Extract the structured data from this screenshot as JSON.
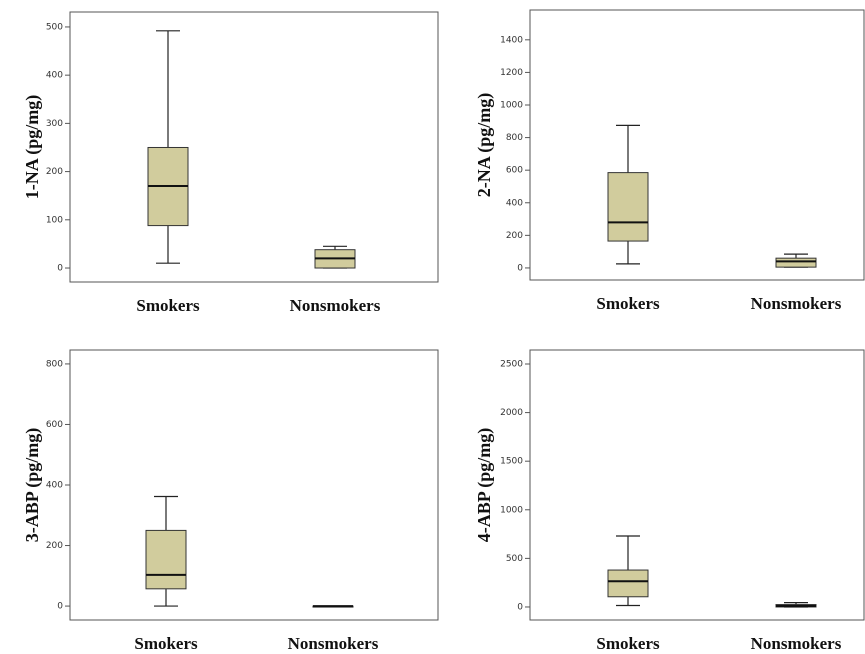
{
  "chart_data": [
    {
      "type": "box",
      "ylabel": "1-NA (pg/mg)",
      "categories": [
        "Smokers",
        "Nonsmokers"
      ],
      "color": "#d1cc9d",
      "boxes": [
        {
          "min": 10,
          "q1": 88,
          "median": 170,
          "q3": 250,
          "max": 492
        },
        {
          "min": 0,
          "q1": 0,
          "median": 20,
          "q3": 38,
          "max": 45
        }
      ],
      "ylim": [
        -29,
        531
      ],
      "yticks": [
        0,
        100,
        200,
        300,
        400,
        500
      ]
    },
    {
      "type": "box",
      "ylabel": "2-NA (pg/mg)",
      "categories": [
        "Smokers",
        "Nonsmokers"
      ],
      "color": "#d1cc9d",
      "boxes": [
        {
          "min": 25,
          "q1": 165,
          "median": 280,
          "q3": 585,
          "max": 875
        },
        {
          "min": 5,
          "q1": 5,
          "median": 40,
          "q3": 60,
          "max": 85
        }
      ],
      "ylim": [
        -74,
        1583
      ],
      "yticks": [
        0,
        200,
        400,
        600,
        800,
        1000,
        1200,
        1400
      ]
    },
    {
      "type": "box",
      "ylabel": "3-ABP (pg/mg)",
      "categories": [
        "Smokers",
        "Nonsmokers"
      ],
      "color": "#d1cc9d",
      "boxes": [
        {
          "min": 0,
          "q1": 57,
          "median": 103,
          "q3": 250,
          "max": 362
        },
        {
          "min": 0,
          "q1": 0,
          "median": 0,
          "q3": 0,
          "max": 0
        }
      ],
      "ylim": [
        -46,
        846
      ],
      "yticks": [
        0,
        200,
        400,
        600,
        800
      ]
    },
    {
      "type": "box",
      "ylabel": "4-ABP (pg/mg)",
      "categories": [
        "Smokers",
        "Nonsmokers"
      ],
      "color": "#d1cc9d",
      "boxes": [
        {
          "min": 15,
          "q1": 105,
          "median": 265,
          "q3": 380,
          "max": 730
        },
        {
          "min": 0,
          "q1": 0,
          "median": 10,
          "q3": 25,
          "max": 45
        }
      ],
      "ylim": [
        -134,
        2644
      ],
      "yticks": [
        0,
        500,
        1000,
        1500,
        2000,
        2500
      ]
    }
  ]
}
